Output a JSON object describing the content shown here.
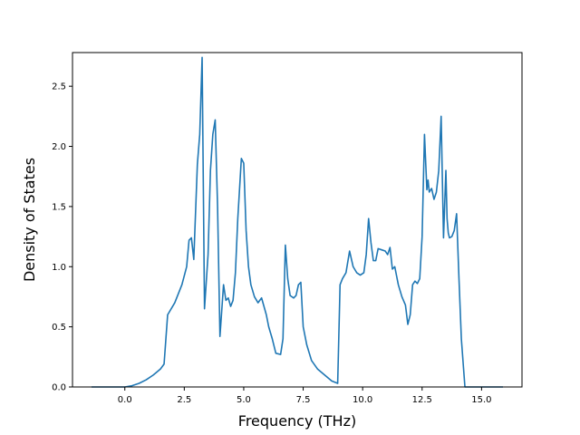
{
  "chart_data": {
    "type": "line",
    "xlabel": "Frequency (THz)",
    "ylabel": "Density of States",
    "xlim": [
      -2.2,
      16.7
    ],
    "ylim": [
      0.0,
      2.78
    ],
    "grid": false,
    "x_ticks": [
      0.0,
      2.5,
      5.0,
      7.5,
      10.0,
      12.5,
      15.0
    ],
    "x_tick_labels": [
      "0.0",
      "2.5",
      "5.0",
      "7.5",
      "10.0",
      "12.5",
      "15.0"
    ],
    "y_ticks": [
      0.0,
      0.5,
      1.0,
      1.5,
      2.0,
      2.5
    ],
    "y_tick_labels": [
      "0.0",
      "0.5",
      "1.0",
      "1.5",
      "2.0",
      "2.5"
    ],
    "series": [
      {
        "color": "#1f77b4",
        "x": [
          -1.4,
          -0.5,
          0.0,
          0.3,
          0.6,
          0.9,
          1.2,
          1.5,
          1.65,
          1.8,
          2.1,
          2.4,
          2.6,
          2.7,
          2.8,
          2.9,
          3.05,
          3.15,
          3.25,
          3.35,
          3.5,
          3.6,
          3.7,
          3.8,
          3.9,
          4.0,
          4.15,
          4.25,
          4.35,
          4.45,
          4.55,
          4.65,
          4.75,
          4.9,
          5.0,
          5.1,
          5.2,
          5.3,
          5.45,
          5.6,
          5.75,
          5.95,
          6.05,
          6.2,
          6.35,
          6.55,
          6.65,
          6.75,
          6.85,
          6.95,
          7.1,
          7.2,
          7.3,
          7.4,
          7.5,
          7.65,
          7.85,
          8.1,
          8.4,
          8.7,
          8.95,
          9.05,
          9.15,
          9.3,
          9.45,
          9.6,
          9.75,
          9.9,
          10.05,
          10.15,
          10.25,
          10.35,
          10.45,
          10.55,
          10.65,
          10.8,
          10.95,
          11.05,
          11.15,
          11.25,
          11.35,
          11.5,
          11.65,
          11.8,
          11.9,
          12.0,
          12.1,
          12.2,
          12.3,
          12.4,
          12.5,
          12.6,
          12.7,
          12.75,
          12.8,
          12.9,
          13.0,
          13.1,
          13.2,
          13.3,
          13.4,
          13.5,
          13.55,
          13.6,
          13.65,
          13.75,
          13.85,
          13.95,
          14.05,
          14.15,
          14.3,
          14.45,
          14.6,
          15.0,
          15.9
        ],
        "values": [
          0.0,
          0.0,
          0.0,
          0.01,
          0.03,
          0.06,
          0.1,
          0.15,
          0.19,
          0.6,
          0.7,
          0.85,
          1.0,
          1.22,
          1.24,
          1.06,
          1.85,
          2.1,
          2.74,
          0.65,
          1.1,
          1.8,
          2.1,
          2.22,
          1.5,
          0.42,
          0.85,
          0.72,
          0.74,
          0.67,
          0.72,
          0.95,
          1.4,
          1.9,
          1.86,
          1.3,
          1.0,
          0.85,
          0.75,
          0.7,
          0.74,
          0.6,
          0.5,
          0.4,
          0.28,
          0.27,
          0.4,
          1.18,
          0.9,
          0.76,
          0.74,
          0.76,
          0.85,
          0.87,
          0.5,
          0.35,
          0.22,
          0.15,
          0.1,
          0.05,
          0.03,
          0.85,
          0.9,
          0.95,
          1.13,
          1.0,
          0.95,
          0.93,
          0.95,
          1.1,
          1.4,
          1.2,
          1.05,
          1.05,
          1.15,
          1.14,
          1.13,
          1.1,
          1.16,
          0.98,
          1.0,
          0.85,
          0.75,
          0.68,
          0.52,
          0.6,
          0.85,
          0.88,
          0.86,
          0.9,
          1.25,
          2.1,
          1.64,
          1.72,
          1.62,
          1.65,
          1.56,
          1.62,
          1.8,
          2.25,
          1.24,
          1.8,
          1.4,
          1.28,
          1.24,
          1.25,
          1.3,
          1.44,
          0.9,
          0.4,
          0.0,
          0.0,
          0.0,
          0.0,
          0.0
        ]
      }
    ]
  }
}
